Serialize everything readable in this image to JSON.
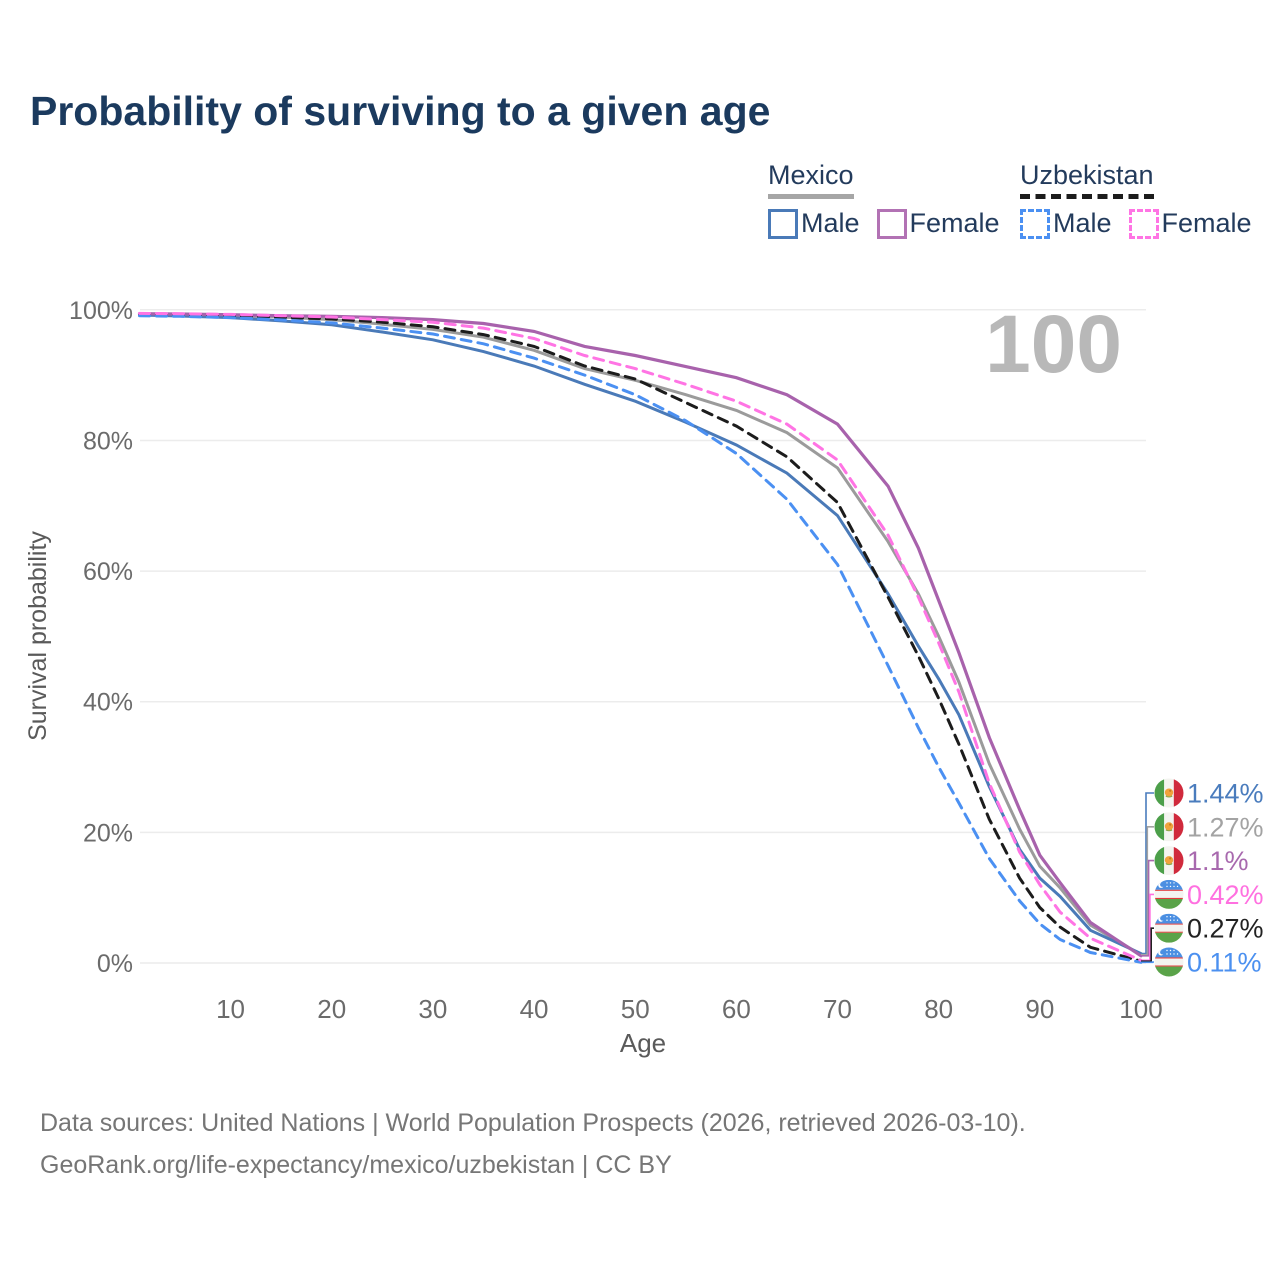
{
  "header": {
    "title": "Probability of surviving to a given age"
  },
  "legend": {
    "groups": [
      {
        "label": "Mexico",
        "underline": "solid",
        "underline_color": "#a6a6a6",
        "items": [
          {
            "label": "Male",
            "color": "#4a7ab8",
            "dashed": false
          },
          {
            "label": "Female",
            "color": "#b272b4",
            "dashed": false
          }
        ]
      },
      {
        "label": "Uzbekistan",
        "underline": "dashed",
        "underline_color": "#1c1c1c",
        "items": [
          {
            "label": "Male",
            "color": "#4b90f2",
            "dashed": true
          },
          {
            "label": "Female",
            "color": "#ff74e4",
            "dashed": true
          }
        ]
      }
    ]
  },
  "watermark": "100",
  "chart_data": {
    "type": "line",
    "title": "Probability of surviving to a given age",
    "xlabel": "Age",
    "ylabel": "Survival probability",
    "xlim": [
      0,
      100
    ],
    "ylim": [
      0,
      100
    ],
    "grid": true,
    "x_ticks": [
      10,
      20,
      30,
      40,
      50,
      60,
      70,
      80,
      90,
      100
    ],
    "y_ticks_percent": [
      0,
      20,
      40,
      60,
      80,
      100
    ],
    "ages": [
      1,
      5,
      10,
      15,
      20,
      25,
      30,
      35,
      40,
      45,
      50,
      55,
      60,
      65,
      70,
      75,
      78,
      80,
      82,
      85,
      88,
      90,
      92,
      95,
      100
    ],
    "series": [
      {
        "id": "mexico",
        "name": "Mexico",
        "color": "#9b9b9b",
        "dash": "",
        "width": 3,
        "values": [
          99.3,
          99.25,
          99.1,
          98.9,
          98.5,
          97.8,
          97.0,
          95.8,
          93.8,
          91.0,
          89.2,
          87.0,
          84.6,
          81.2,
          75.8,
          64.5,
          56.5,
          50.0,
          43.0,
          30.5,
          20.5,
          14.8,
          11.5,
          5.8,
          1.27
        ]
      },
      {
        "id": "mexico-male",
        "name": "Mexico Male",
        "color": "#4a7ab8",
        "dash": "",
        "width": 3,
        "values": [
          99.2,
          99.05,
          98.8,
          98.3,
          97.7,
          96.6,
          95.4,
          93.6,
          91.4,
          88.6,
          86.0,
          82.8,
          79.3,
          75.0,
          68.5,
          56.5,
          48.5,
          43.5,
          38.0,
          27.0,
          17.4,
          13.0,
          10.2,
          5.0,
          1.44
        ]
      },
      {
        "id": "mexico-female",
        "name": "Mexico Female",
        "color": "#a862ac",
        "dash": "",
        "width": 3.2,
        "values": [
          99.4,
          99.35,
          99.25,
          99.1,
          99.0,
          98.8,
          98.5,
          97.9,
          96.7,
          94.4,
          93.0,
          91.3,
          89.6,
          87.0,
          82.5,
          73.0,
          63.5,
          55.5,
          47.5,
          34.5,
          23.5,
          16.5,
          12.3,
          6.2,
          1.1
        ]
      },
      {
        "id": "uzbekistan",
        "name": "Uzbekistan",
        "color": "#1c1c1c",
        "dash": "10 7",
        "width": 3,
        "values": [
          99.3,
          99.25,
          99.1,
          98.85,
          98.6,
          98.1,
          97.4,
          96.2,
          94.4,
          91.4,
          89.4,
          85.8,
          82.2,
          77.5,
          70.5,
          56.0,
          47.0,
          40.5,
          33.5,
          22.0,
          13.0,
          8.5,
          5.5,
          2.4,
          0.27
        ]
      },
      {
        "id": "uzbekistan-male",
        "name": "Uzbekistan Male",
        "color": "#4b90f2",
        "dash": "10 7",
        "width": 3,
        "values": [
          99.1,
          99.0,
          98.8,
          98.45,
          98.0,
          97.2,
          96.3,
          94.8,
          92.6,
          90.0,
          87.0,
          83.0,
          78.0,
          71.0,
          61.0,
          45.5,
          36.0,
          30.0,
          24.5,
          16.0,
          9.5,
          6.0,
          3.6,
          1.6,
          0.11
        ]
      },
      {
        "id": "uzbekistan-female",
        "name": "Uzbekistan Female",
        "color": "#ff74e4",
        "dash": "10 7",
        "width": 3,
        "values": [
          99.45,
          99.4,
          99.3,
          99.1,
          98.9,
          98.5,
          98.1,
          97.2,
          95.6,
          93.0,
          91.0,
          88.6,
          86.0,
          82.5,
          77.0,
          65.5,
          56.0,
          49.0,
          41.5,
          27.5,
          17.0,
          12.0,
          7.8,
          3.8,
          0.42
        ]
      }
    ],
    "end_labels": [
      {
        "flag": "mexico",
        "series": "Mexico Male",
        "value": "1.44%",
        "value_num": 1.44,
        "color": "#4a7cbd"
      },
      {
        "flag": "mexico",
        "series": "Mexico",
        "value": "1.27%",
        "value_num": 1.27,
        "color": "#a3a3a3"
      },
      {
        "flag": "mexico",
        "series": "Mexico Female",
        "value": "1.1%",
        "value_num": 1.1,
        "color": "#a869ae"
      },
      {
        "flag": "uzbekistan",
        "series": "Uzbekistan Female",
        "value": "0.42%",
        "value_num": 0.42,
        "color": "#ff70e0"
      },
      {
        "flag": "uzbekistan",
        "series": "Uzbekistan",
        "value": "0.27%",
        "value_num": 0.27,
        "color": "#222222"
      },
      {
        "flag": "uzbekistan",
        "series": "Uzbekistan Male",
        "value": "0.11%",
        "value_num": 0.11,
        "color": "#4b90f0"
      }
    ]
  },
  "footer": {
    "line1": "Data sources: United Nations | World Population Prospects (2026, retrieved 2026-03-10).",
    "line2": "GeoRank.org/life-expectancy/mexico/uzbekistan | CC BY"
  }
}
